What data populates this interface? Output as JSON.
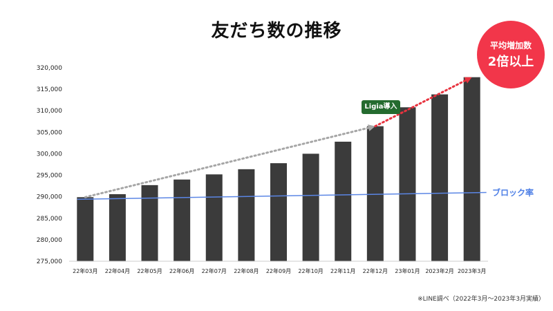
{
  "chart_data": {
    "type": "bar",
    "title": "友だち数の推移",
    "categories": [
      "22年03月",
      "22年04月",
      "22年05月",
      "22年06月",
      "22年07月",
      "22年08月",
      "22年09月",
      "22年10月",
      "22年11月",
      "22年12月",
      "23年01月",
      "2023年2月",
      "2023年3月"
    ],
    "values": [
      289900,
      290600,
      292700,
      294000,
      295200,
      296400,
      297800,
      300000,
      302800,
      306400,
      310800,
      313800,
      317800
    ],
    "ylim": [
      275000,
      320000
    ],
    "y_ticks": [
      "275,000",
      "280,000",
      "285,000",
      "290,000",
      "295,000",
      "300,000",
      "305,000",
      "310,000",
      "315,000",
      "320,000"
    ],
    "y_tick_values": [
      275000,
      280000,
      285000,
      290000,
      295000,
      300000,
      305000,
      310000,
      315000,
      320000
    ],
    "bar_color": "#3b3b3b",
    "block_rate": {
      "label": "ブロック率",
      "color": "#5b86e5",
      "start_value": 289400,
      "end_value": 291000
    },
    "trend_before": {
      "from_category": "22年03月",
      "from_value": 289900,
      "to_category": "22年12月",
      "to_value": 306400,
      "color": "#a6a6a6"
    },
    "trend_after": {
      "from_category": "22年12月",
      "from_value": 306400,
      "to_category": "2023年3月",
      "to_value": 317800,
      "color": "#e8333f"
    },
    "annotation_ligia": "Ligia導入",
    "badge": {
      "line1": "平均増加数",
      "line2": "2倍以上",
      "color": "#f2364a"
    },
    "source_note": "※LINE調べ（2022年3月〜2023年3月実績）",
    "grid": false
  }
}
